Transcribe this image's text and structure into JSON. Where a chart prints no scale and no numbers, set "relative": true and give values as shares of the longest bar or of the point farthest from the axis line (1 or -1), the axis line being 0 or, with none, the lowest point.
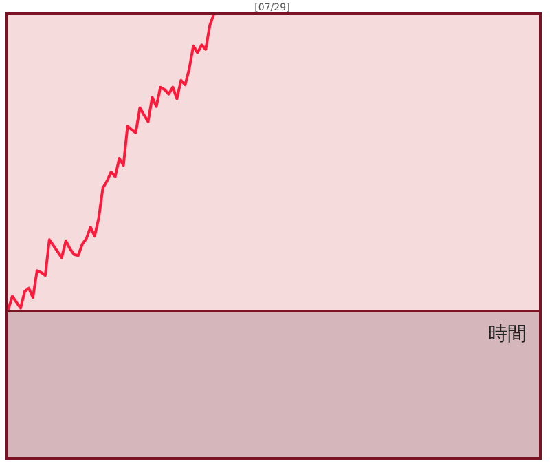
{
  "chart_data": {
    "type": "line",
    "relative": true,
    "title": "[07/29]",
    "xlabel": "時間",
    "categories": [
      null,
      null,
      null,
      null,
      null,
      null,
      null,
      null,
      null,
      null,
      null,
      null,
      null,
      null,
      null,
      null,
      null,
      null,
      null,
      null,
      null,
      null,
      null,
      null,
      null,
      null,
      null,
      null,
      null,
      null,
      null,
      null,
      null,
      null,
      null,
      null,
      null,
      null,
      null,
      null,
      null,
      null,
      null,
      null,
      null,
      null,
      null,
      null,
      null,
      null,
      null,
      null,
      null,
      null,
      null,
      null,
      null,
      null,
      null,
      null,
      null,
      null,
      null,
      null,
      null,
      null,
      null,
      null,
      null,
      null,
      null,
      null,
      null,
      null,
      null,
      null,
      null,
      null,
      null,
      null,
      null,
      null,
      null,
      null,
      null,
      null,
      null,
      null,
      null,
      null,
      null,
      null,
      null,
      null,
      null,
      null,
      null,
      null,
      null,
      null,
      null,
      null,
      null,
      null,
      null,
      null,
      null,
      null,
      null,
      null,
      null,
      null,
      null,
      null,
      null,
      null,
      null,
      null,
      null,
      null,
      null,
      null,
      null,
      null,
      null,
      null,
      null,
      null,
      null,
      null
    ],
    "series": [
      {
        "color": "#ff1a3c",
        "values": [
          0.005,
          0.05,
          0.03,
          0.01,
          0.066,
          0.077,
          0.046,
          0.136,
          0.13,
          0.12,
          0.24,
          0.22,
          0.2,
          0.18,
          0.236,
          0.21,
          0.19,
          0.187,
          0.225,
          0.244,
          0.282,
          0.252,
          0.313,
          0.414,
          0.437,
          0.468,
          0.452,
          0.514,
          0.49,
          0.622,
          0.61,
          0.6,
          0.684,
          0.66,
          0.637,
          0.719,
          0.688,
          0.753,
          0.745,
          0.73,
          0.753,
          0.714,
          0.776,
          0.761,
          0.815,
          0.892,
          0.869,
          0.895,
          0.88,
          0.961,
          1.0,
          null,
          null,
          null,
          null,
          null,
          null,
          null,
          null,
          null,
          null,
          null,
          null,
          null,
          null,
          null,
          null,
          null,
          null,
          null,
          null,
          null,
          null,
          null,
          null,
          null,
          null,
          null,
          null,
          null,
          null,
          null,
          null,
          null,
          null,
          null,
          null,
          null,
          null,
          null,
          null,
          null,
          null,
          null,
          null,
          null,
          null,
          null,
          null,
          null,
          null,
          null,
          null,
          null,
          null,
          null,
          null,
          null,
          null,
          null,
          null,
          null,
          null,
          null,
          null,
          null,
          null,
          null,
          null,
          null,
          null,
          null,
          null,
          null,
          null,
          null,
          null,
          null,
          null,
          null
        ]
      }
    ]
  }
}
